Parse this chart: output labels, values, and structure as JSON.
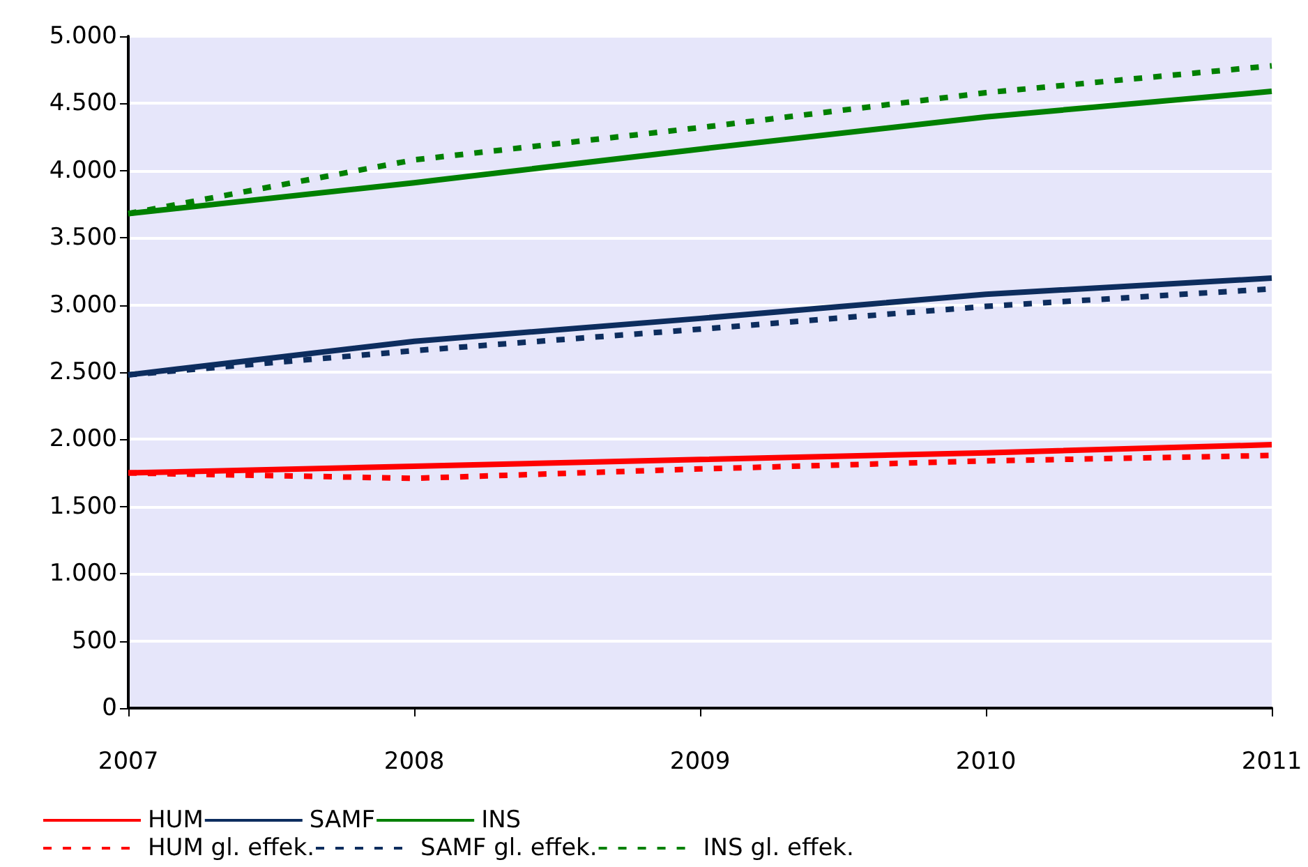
{
  "chart_data": {
    "type": "line",
    "categories": [
      "2007",
      "2008",
      "2009",
      "2010",
      "2011"
    ],
    "ylim": [
      0,
      5000
    ],
    "yticks": [
      {
        "value": 0,
        "label": "0"
      },
      {
        "value": 500,
        "label": "500"
      },
      {
        "value": 1000,
        "label": "1.000"
      },
      {
        "value": 1500,
        "label": "1.500"
      },
      {
        "value": 2000,
        "label": "2.000"
      },
      {
        "value": 2500,
        "label": "2.500"
      },
      {
        "value": 3000,
        "label": "3.000"
      },
      {
        "value": 3500,
        "label": "3.500"
      },
      {
        "value": 4000,
        "label": "4.000"
      },
      {
        "value": 4500,
        "label": "4.500"
      },
      {
        "value": 5000,
        "label": "5.000"
      }
    ],
    "grid": "y",
    "legend": "bottom",
    "marker": "none",
    "series": [
      {
        "name": "HUM",
        "color": "#ff0000",
        "line_style": "solid",
        "values": [
          1750,
          1800,
          1850,
          1900,
          1960
        ]
      },
      {
        "name": "SAMF",
        "color": "#0d2d5e",
        "line_style": "solid",
        "values": [
          2480,
          2730,
          2900,
          3080,
          3200
        ]
      },
      {
        "name": "INS",
        "color": "#008000",
        "line_style": "solid",
        "values": [
          3680,
          3910,
          4160,
          4400,
          4590
        ]
      },
      {
        "name": "HUM gl. effek.",
        "color": "#ff0000",
        "line_style": "dashed",
        "values": [
          1750,
          1710,
          1780,
          1840,
          1880
        ]
      },
      {
        "name": "SAMF gl. effek.",
        "color": "#0d2d5e",
        "line_style": "dashed",
        "values": [
          2480,
          2660,
          2820,
          2990,
          3120
        ]
      },
      {
        "name": "INS gl. effek.",
        "color": "#008000",
        "line_style": "dashed",
        "values": [
          3680,
          4080,
          4320,
          4580,
          4780
        ]
      }
    ]
  }
}
